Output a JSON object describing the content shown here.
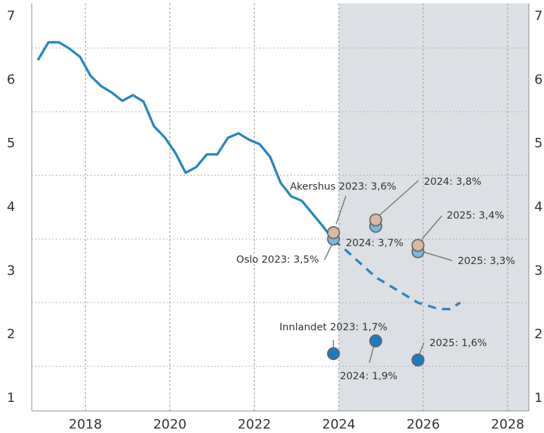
{
  "chart_data": {
    "type": "line",
    "xlim": [
      2016.73,
      2028.5
    ],
    "xticks": [
      2018,
      2020,
      2022,
      2024,
      2026,
      2028
    ],
    "ylim": [
      0.8,
      7.2
    ],
    "yticks": [
      1,
      2,
      3,
      4,
      5,
      6,
      7
    ],
    "ygrid": [
      1.5,
      2.5,
      3.5,
      4.5,
      5.5,
      6.5
    ],
    "grid": true,
    "shade_from": 2024,
    "shade_color": "#dcdfe4",
    "series": [
      {
        "color": "#2a86c0",
        "dashed": false,
        "x": [
          2016.875,
          2017.125,
          2017.375,
          2017.625,
          2017.875,
          2018.125,
          2018.375,
          2018.625,
          2018.875,
          2019.125,
          2019.375,
          2019.625,
          2019.875,
          2020.125,
          2020.375,
          2020.625,
          2020.875,
          2021.125,
          2021.375,
          2021.625,
          2021.875,
          2022.125,
          2022.375,
          2022.625,
          2022.875,
          2023.125,
          2023.375,
          2023.625,
          2023.875
        ],
        "values": [
          6.31,
          6.59,
          6.59,
          6.49,
          6.36,
          6.06,
          5.9,
          5.8,
          5.67,
          5.76,
          5.66,
          5.27,
          5.1,
          4.86,
          4.54,
          4.63,
          4.83,
          4.83,
          5.09,
          5.16,
          5.06,
          4.99,
          4.79,
          4.38,
          4.17,
          4.1,
          3.9,
          3.7,
          3.48
        ]
      },
      {
        "color": "#2a86c0",
        "dashed": true,
        "x": [
          2023.875,
          2024.125,
          2024.375,
          2024.625,
          2024.875,
          2025.125,
          2025.375,
          2025.625,
          2025.875,
          2026.125,
          2026.375,
          2026.625,
          2026.875
        ],
        "values": [
          3.48,
          3.35,
          3.2,
          3.05,
          2.9,
          2.8,
          2.7,
          2.6,
          2.5,
          2.45,
          2.4,
          2.4,
          2.5
        ]
      }
    ],
    "points": [
      {
        "color": "#7ab8de",
        "x": [
          2023.875,
          2024.875,
          2025.875
        ],
        "values": [
          3.5,
          3.7,
          3.3
        ],
        "labels": [
          "Oslo 2023: 3,5%",
          "2024: 3,7%",
          "2025: 3,3%"
        ]
      },
      {
        "color": "#d9b8a3",
        "x": [
          2023.875,
          2024.875,
          2025.875
        ],
        "values": [
          3.6,
          3.8,
          3.4
        ],
        "labels": [
          "Akershus 2023: 3,6%",
          "2024: 3,8%",
          "2025: 3,4%"
        ]
      },
      {
        "color": "#1a7dc0",
        "x": [
          2023.875,
          2024.875,
          2025.875
        ],
        "values": [
          1.7,
          1.9,
          1.6
        ],
        "labels": [
          "Innlandet 2023: 1,7%",
          "2024: 1,9%",
          "2025: 1,6%"
        ]
      }
    ]
  }
}
